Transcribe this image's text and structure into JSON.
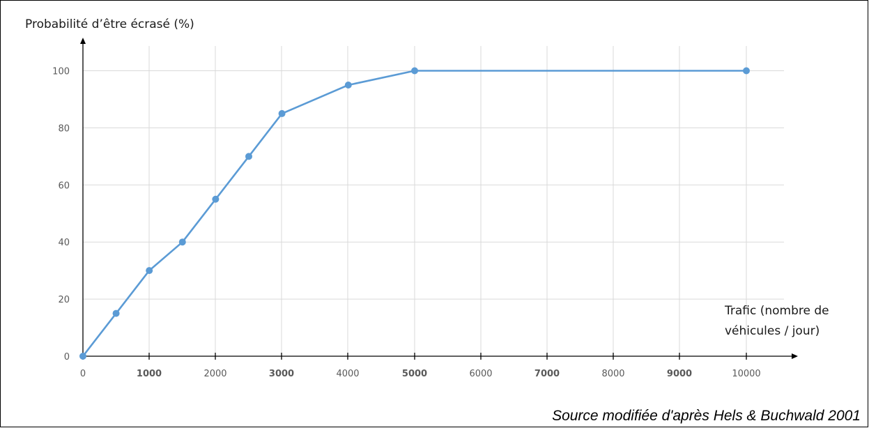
{
  "chart_data": {
    "type": "line",
    "ylabel": "Probabilité d’être écrasé (%)",
    "xlabel_lines": [
      "Trafic (nombre de",
      "véhicules / jour)"
    ],
    "x_ticks": [
      "0",
      "1000",
      "2000",
      "3000",
      "4000",
      "5000",
      "6000",
      "7000",
      "8000",
      "9000",
      "10000"
    ],
    "x_ticks_bold": [
      false,
      true,
      false,
      true,
      false,
      true,
      false,
      true,
      false,
      true,
      false
    ],
    "y_ticks": [
      0,
      20,
      40,
      60,
      80,
      100
    ],
    "ylim": [
      0,
      110
    ],
    "grid": true,
    "series": [
      {
        "color": "#5b9bd5",
        "points": [
          {
            "x": 0,
            "y": 0
          },
          {
            "x": 500,
            "y": 15
          },
          {
            "x": 1000,
            "y": 30
          },
          {
            "x": 1500,
            "y": 40
          },
          {
            "x": 2000,
            "y": 55
          },
          {
            "x": 2500,
            "y": 70
          },
          {
            "x": 3000,
            "y": 85
          },
          {
            "x": 4000,
            "y": 95
          },
          {
            "x": 5000,
            "y": 100
          },
          {
            "x": 10000,
            "y": 100
          }
        ]
      }
    ]
  },
  "source": "Source modifiée d'après Hels & Buchwald 2001"
}
